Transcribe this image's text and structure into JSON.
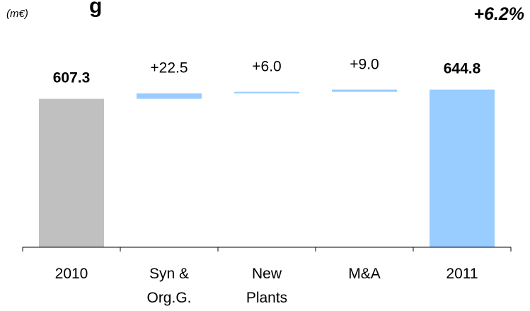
{
  "chart_data": {
    "type": "waterfall",
    "unit_label": "(m€)",
    "growth_label": "+6.2%",
    "categories": [
      {
        "label": [
          "2010"
        ],
        "kind": "total",
        "value": 607.3,
        "label_text": "607.3",
        "color": "#c0c0c0"
      },
      {
        "label": [
          "Syn &",
          "Org.G."
        ],
        "kind": "delta",
        "value": 22.5,
        "label_text": "+22.5",
        "color": "#99ccff"
      },
      {
        "label": [
          "New",
          "Plants"
        ],
        "kind": "delta",
        "value": 6.0,
        "label_text": "+6.0",
        "color": "#99ccff"
      },
      {
        "label": [
          "M&A"
        ],
        "kind": "delta",
        "value": 9.0,
        "label_text": "+9.0",
        "color": "#99ccff"
      },
      {
        "label": [
          "2011"
        ],
        "kind": "total",
        "value": 644.8,
        "label_text": "644.8",
        "color": "#99ccff"
      }
    ],
    "title_fragment": "g"
  }
}
